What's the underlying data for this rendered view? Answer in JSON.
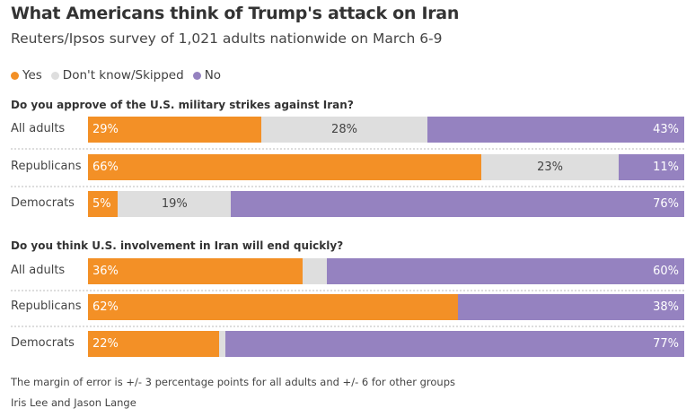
{
  "header": {
    "title": "What Americans think of Trump's attack on Iran",
    "subtitle": "Reuters/Ipsos survey of 1,021 adults nationwide on March 6-9"
  },
  "legend": [
    {
      "label": "Yes",
      "color": "#F39026"
    },
    {
      "label": "Don't know/Skipped",
      "color": "#DEDEDE"
    },
    {
      "label": "No",
      "color": "#9582C0"
    }
  ],
  "chart_data": [
    {
      "type": "bar",
      "stacked": true,
      "orientation": "horizontal",
      "title": "Do you approve of the U.S. military strikes against Iran?",
      "categories": [
        "All adults",
        "Republicans",
        "Democrats"
      ],
      "series": [
        {
          "name": "Yes",
          "values": [
            29,
            66,
            5
          ]
        },
        {
          "name": "Don't know/Skipped",
          "values": [
            28,
            23,
            19
          ]
        },
        {
          "name": "No",
          "values": [
            43,
            11,
            76
          ]
        }
      ]
    },
    {
      "type": "bar",
      "stacked": true,
      "orientation": "horizontal",
      "title": "Do you think U.S. involvement in Iran will end quickly?",
      "categories": [
        "All adults",
        "Republicans",
        "Democrats"
      ],
      "series": [
        {
          "name": "Yes",
          "values": [
            36,
            62,
            22
          ]
        },
        {
          "name": "Don't know/Skipped",
          "values": [
            4,
            0,
            1
          ]
        },
        {
          "name": "No",
          "values": [
            60,
            38,
            77
          ]
        }
      ]
    }
  ],
  "footer": {
    "note": "The margin of error is +/- 3 percentage points for all adults and +/- 6 for other groups",
    "byline": "Iris Lee and Jason Lange"
  }
}
